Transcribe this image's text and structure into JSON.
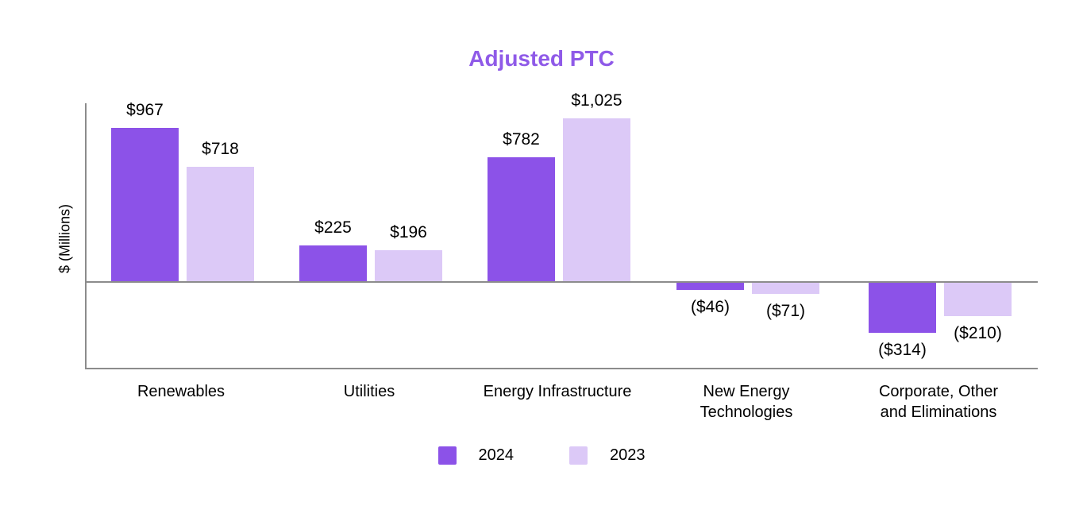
{
  "chart_data": {
    "type": "bar",
    "title": "Adjusted PTC",
    "title_color": "#8F5AE8",
    "ylabel": "$ (Millions)",
    "categories": [
      "Renewables",
      "Utilities",
      "Energy Infrastructure",
      "New Energy\nTechnologies",
      "Corporate, Other\nand Eliminations"
    ],
    "series": [
      {
        "name": "2024",
        "color": "#8C52E8",
        "values": [
          967,
          225,
          782,
          -46,
          -314
        ],
        "labels": [
          "$967",
          "$225",
          "$782",
          "($46)",
          "($314)"
        ]
      },
      {
        "name": "2023",
        "color": "#DCC9F7",
        "values": [
          718,
          196,
          1025,
          -71,
          -210
        ],
        "labels": [
          "$718",
          "$196",
          "$1,025",
          "($71)",
          "($210)"
        ]
      }
    ],
    "legend": [
      {
        "label": "2024",
        "color": "#8C52E8"
      },
      {
        "label": "2023",
        "color": "#DCC9F7"
      }
    ],
    "axis_color": "#8C8C8C",
    "grid": false,
    "legend_position": "bottom",
    "ylim_px_scale_note": "approx 0.2 px per $M in source image"
  }
}
